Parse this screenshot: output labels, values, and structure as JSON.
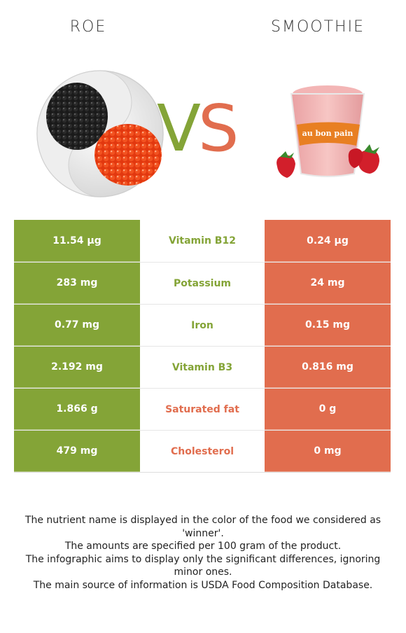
{
  "header": {
    "left_food": "ROE",
    "right_food": "SMOOTHIE"
  },
  "vs": {
    "v": "V",
    "s": "S"
  },
  "colors": {
    "left_winner": "#84a437",
    "right_winner": "#e16d4e"
  },
  "rows": [
    {
      "left": "11.54 µg",
      "nutrient": "Vitamin B12",
      "right": "0.24 µg",
      "winner": "left"
    },
    {
      "left": "283 mg",
      "nutrient": "Potassium",
      "right": "24 mg",
      "winner": "left"
    },
    {
      "left": "0.77 mg",
      "nutrient": "Iron",
      "right": "0.15 mg",
      "winner": "left"
    },
    {
      "left": "2.192 mg",
      "nutrient": "Vitamin B3",
      "right": "0.816 mg",
      "winner": "left"
    },
    {
      "left": "1.866 g",
      "nutrient": "Saturated fat",
      "right": "0 g",
      "winner": "right"
    },
    {
      "left": "479 mg",
      "nutrient": "Cholesterol",
      "right": "0 mg",
      "winner": "right"
    }
  ],
  "footer": {
    "line1": "The nutrient name is displayed in the color of the food we considered as 'winner'.",
    "line2": "The amounts are specified per 100 gram of the product.",
    "line3": "The infographic aims to display only the significant differences, ignoring minor ones.",
    "line4": "The main source of information is USDA Food Composition Database."
  },
  "smoothie_cup_text": "au bon pain"
}
